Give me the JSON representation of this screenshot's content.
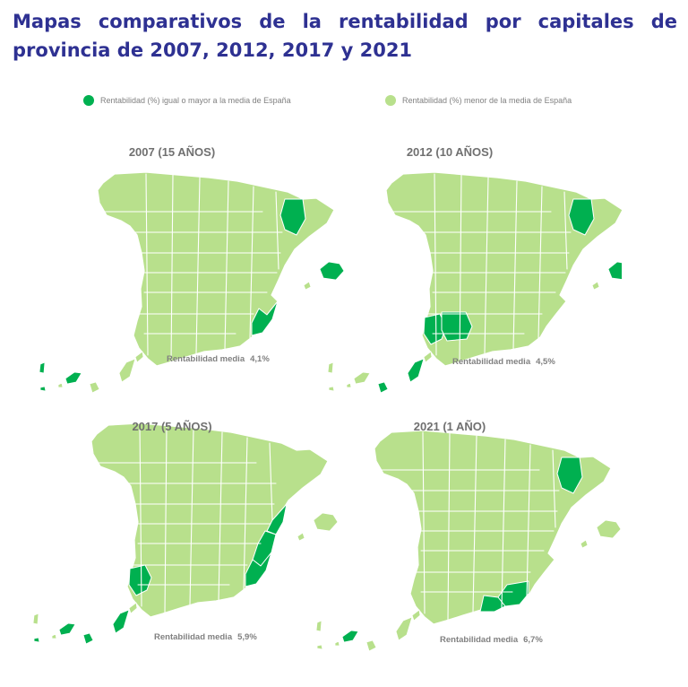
{
  "header": {
    "title": "Mapas comparativos de la rentabilidad por capitales de provincia de 2007, 2012, 2017 y 2021"
  },
  "legend": {
    "items": [
      {
        "label": "Rentabilidad (%) igual o mayor a la media de España",
        "color": "#00b050"
      },
      {
        "label": "Rentabilidad (%) menor de la media de España",
        "color": "#b8e08c"
      }
    ]
  },
  "colors": {
    "above": "#00b050",
    "below": "#b8e08c",
    "border": "#ffffff"
  },
  "maps": [
    {
      "title": "2007 (15 AÑOS)",
      "avg_label": "Rentabilidad media",
      "avg_value": "4,1%",
      "above_average": [
        "Huesca",
        "Alicante",
        "Mallorca",
        "Tenerife",
        "La Palma",
        "El Hierro"
      ]
    },
    {
      "title": "2012 (10 AÑOS)",
      "avg_label": "Rentabilidad media",
      "avg_value": "4,5%",
      "above_average": [
        "Huesca",
        "Huelva",
        "Sevilla",
        "Mallorca",
        "Gran Canaria",
        "Fuerteventura"
      ]
    },
    {
      "title": "2017 (5 AÑOS)",
      "avg_label": "Rentabilidad media",
      "avg_value": "5,9%",
      "above_average": [
        "Castellón",
        "Valencia",
        "Alicante",
        "Huelva",
        "Tenerife",
        "Gran Canaria",
        "Fuerteventura",
        "El Hierro"
      ]
    },
    {
      "title": "2021 (1 AÑO)",
      "avg_label": "Rentabilidad media",
      "avg_value": "6,7%",
      "above_average": [
        "Huesca",
        "Murcia",
        "Almería",
        "Tenerife"
      ]
    }
  ]
}
